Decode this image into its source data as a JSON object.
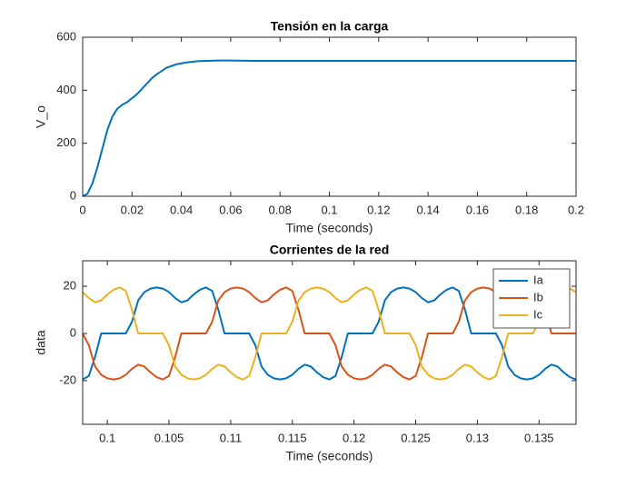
{
  "chart_data": [
    {
      "type": "line",
      "title": "Tensión en la carga",
      "xlabel": "Time (seconds)",
      "ylabel": "V_o",
      "x": [
        0,
        0.002,
        0.004,
        0.006,
        0.008,
        0.01,
        0.012,
        0.014,
        0.016,
        0.018,
        0.02,
        0.022,
        0.024,
        0.026,
        0.028,
        0.03,
        0.034,
        0.038,
        0.042,
        0.046,
        0.05,
        0.055,
        0.06,
        0.07,
        0.08,
        0.1,
        0.12,
        0.14,
        0.16,
        0.18,
        0.2
      ],
      "values": [
        0,
        10,
        50,
        110,
        180,
        250,
        300,
        330,
        345,
        355,
        370,
        385,
        405,
        425,
        445,
        460,
        485,
        498,
        505,
        509,
        511,
        512,
        512,
        511,
        511,
        511,
        511,
        511,
        511,
        511,
        511
      ],
      "color": "#0072BD",
      "xlim": [
        0,
        0.2
      ],
      "xticks": [
        0,
        0.02,
        0.04,
        0.06,
        0.08,
        0.1,
        0.12,
        0.14,
        0.16,
        0.18,
        0.2
      ],
      "ylim": [
        0,
        600
      ],
      "yticks": [
        0,
        200,
        400,
        600
      ]
    },
    {
      "type": "line",
      "title": "Corrientes de la red",
      "xlabel": "Time (seconds)",
      "ylabel": "data",
      "x": [
        0.098,
        0.0985,
        0.099,
        0.0995,
        0.1,
        0.1005,
        0.101,
        0.1015,
        0.102,
        0.1025,
        0.103,
        0.1035,
        0.104,
        0.1045,
        0.105,
        0.1055,
        0.106,
        0.1065,
        0.107,
        0.1075,
        0.108,
        0.1085,
        0.109,
        0.1095,
        0.11,
        0.1105,
        0.111,
        0.1115,
        0.112,
        0.1125,
        0.113,
        0.1135,
        0.114,
        0.1145,
        0.115,
        0.1155,
        0.116,
        0.1165,
        0.117,
        0.1175,
        0.118,
        0.1185,
        0.119,
        0.1195,
        0.12,
        0.1205,
        0.121,
        0.1215,
        0.122,
        0.1225,
        0.123,
        0.1235,
        0.124,
        0.1245,
        0.125,
        0.1255,
        0.126,
        0.1265,
        0.127,
        0.1275,
        0.128,
        0.1285,
        0.129,
        0.1295,
        0.13,
        0.1305,
        0.131,
        0.1315,
        0.132,
        0.1325,
        0.133,
        0.1335,
        0.134,
        0.1345,
        0.135,
        0.1355,
        0.136,
        0.1365,
        0.137,
        0.1375,
        0.138
      ],
      "series": [
        {
          "name": "Ia",
          "color": "#0072BD",
          "values": [
            -19.5,
            -18,
            -10,
            0,
            0,
            0,
            0,
            0,
            5,
            14,
            17.5,
            19,
            19.5,
            19,
            17.5,
            15,
            13.2,
            14,
            16.5,
            18.5,
            19.5,
            18,
            10,
            0,
            0,
            0,
            0,
            0,
            -5,
            -14,
            -17.5,
            -19,
            -19.5,
            -19,
            -17.5,
            -15,
            -13.2,
            -14,
            -16.5,
            -18.5,
            -19.5,
            -18,
            -10,
            0,
            0,
            0,
            0,
            0,
            5,
            14,
            17.5,
            19,
            19.5,
            19,
            17.5,
            15,
            13.2,
            14,
            16.5,
            18.5,
            19.5,
            18,
            10,
            0,
            0,
            0,
            0,
            0,
            -5,
            -14,
            -17.5,
            -19,
            -19.5,
            -19,
            -17.5,
            -15,
            -13.2,
            -14,
            -16.5,
            -18.5,
            -19.5
          ]
        },
        {
          "name": "Ib",
          "color": "#D95319",
          "values": [
            0,
            -5,
            -14,
            -17.5,
            -19,
            -19.5,
            -19,
            -17.5,
            -15,
            -13.2,
            -14,
            -16.5,
            -18.5,
            -19.5,
            -18,
            -10,
            0,
            0,
            0,
            0,
            0,
            5,
            14,
            17.5,
            19,
            19.5,
            19,
            17.5,
            15,
            13.2,
            14,
            16.5,
            18.5,
            19.5,
            18,
            10,
            0,
            0,
            0,
            0,
            0,
            -5,
            -14,
            -17.5,
            -19,
            -19.5,
            -19,
            -17.5,
            -15,
            -13.2,
            -14,
            -16.5,
            -18.5,
            -19.5,
            -18,
            -10,
            0,
            0,
            0,
            0,
            0,
            5,
            14,
            17.5,
            19,
            19.5,
            19,
            17.5,
            15,
            13.2,
            14,
            16.5,
            18.5,
            19.5,
            18,
            10,
            0,
            0,
            0,
            0,
            0
          ]
        },
        {
          "name": "Ic",
          "color": "#EDB120",
          "values": [
            17.5,
            15,
            13.2,
            14,
            16.5,
            18.5,
            19.5,
            18,
            10,
            0,
            0,
            0,
            0,
            0,
            -5,
            -14,
            -17.5,
            -19,
            -19.5,
            -19,
            -17.5,
            -15,
            -13.2,
            -14,
            -16.5,
            -18.5,
            -19.5,
            -18,
            -10,
            0,
            0,
            0,
            0,
            0,
            5,
            14,
            17.5,
            19,
            19.5,
            19,
            17.5,
            15,
            13.2,
            14,
            16.5,
            18.5,
            19.5,
            18,
            10,
            0,
            0,
            0,
            0,
            0,
            -5,
            -14,
            -17.5,
            -19,
            -19.5,
            -19,
            -17.5,
            -15,
            -13.2,
            -14,
            -16.5,
            -18.5,
            -19.5,
            -18,
            -10,
            0,
            0,
            0,
            0,
            0,
            5,
            14,
            17.5,
            19,
            19.5,
            19,
            17.5
          ]
        }
      ],
      "legend": "northeast",
      "xlim": [
        0.098,
        0.138
      ],
      "xticks": [
        0.1,
        0.105,
        0.11,
        0.115,
        0.12,
        0.125,
        0.13,
        0.135
      ],
      "ylim": [
        -38.5,
        30.8
      ],
      "yticks": [
        -20,
        0,
        20
      ]
    }
  ]
}
